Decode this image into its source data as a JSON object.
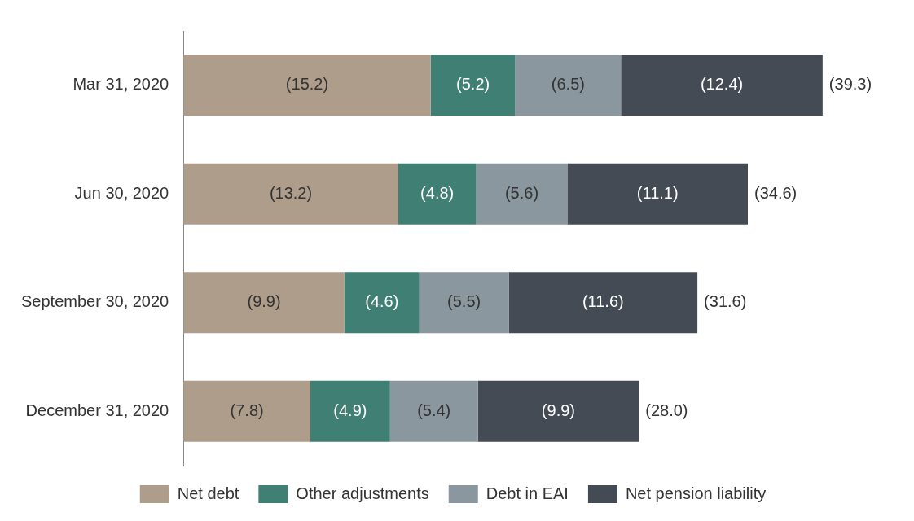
{
  "chart_data": {
    "type": "bar",
    "orientation": "horizontal",
    "stacked": true,
    "legend": "bottom",
    "categories": [
      "Mar 31, 2020",
      "Jun 30, 2020",
      "September 30, 2020",
      "December 31, 2020"
    ],
    "series": [
      {
        "name": "Net debt",
        "color": "#ae9d8a",
        "values": [
          15.2,
          13.2,
          9.9,
          7.8
        ],
        "value_labels": [
          "(15.2)",
          "(13.2)",
          "(9.9)",
          "(7.8)"
        ]
      },
      {
        "name": "Other adjustments",
        "color": "#3f7f74",
        "values": [
          5.2,
          4.8,
          4.6,
          4.9
        ],
        "value_labels": [
          "(5.2)",
          "(4.8)",
          "(4.6)",
          "(4.9)"
        ]
      },
      {
        "name": "Debt in EAI",
        "color": "#8a979e",
        "values": [
          6.5,
          5.6,
          5.5,
          5.4
        ],
        "value_labels": [
          "(6.5)",
          "(5.6)",
          "(5.5)",
          "(5.4)"
        ]
      },
      {
        "name": "Net pension liability",
        "color": "#444b55",
        "values": [
          12.4,
          11.1,
          11.6,
          9.9
        ],
        "value_labels": [
          "(12.4)",
          "(11.1)",
          "(11.6)",
          "(9.9)"
        ]
      }
    ],
    "totals": [
      "(39.3)",
      "(34.6)",
      "(31.6)",
      "(28.0)"
    ]
  }
}
